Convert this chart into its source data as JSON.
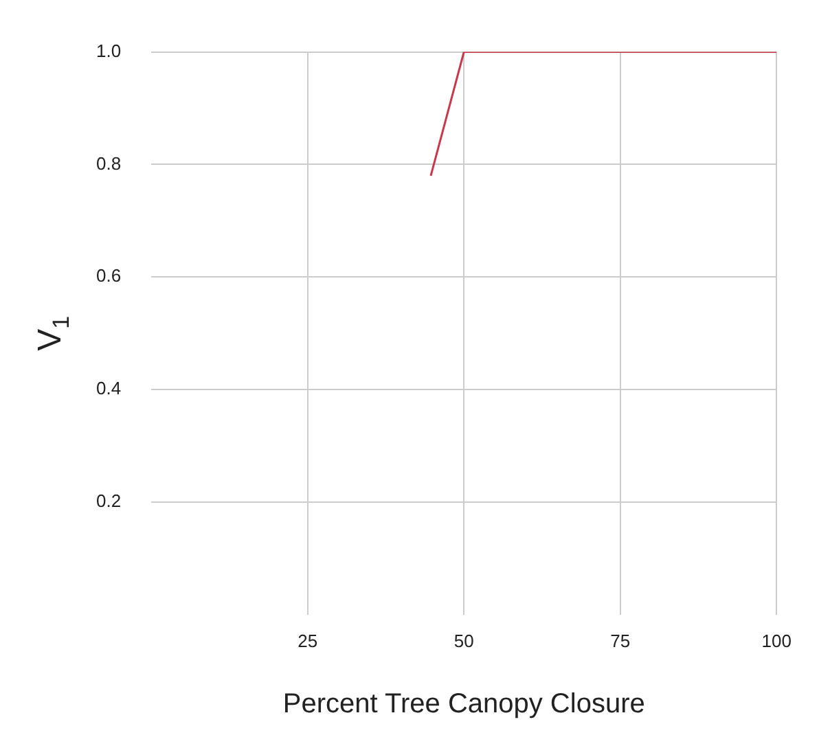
{
  "chart_data": {
    "type": "line",
    "xlabel": "Percent Tree Canopy Closure",
    "ylabel": "V$_{1}$",
    "x": [
      44.7,
      50,
      100
    ],
    "series": [
      {
        "color": "#c8374a",
        "values": [
          0.78,
          1.0,
          1.0
        ]
      }
    ],
    "xlim": [
      0,
      100
    ],
    "xticks": [
      25,
      50,
      75,
      100
    ],
    "ylim": [
      0,
      1
    ],
    "yticks": [
      0.2,
      0.4,
      0.6,
      0.8,
      {
        "value": 1,
        "label": "1.0"
      }
    ],
    "grid": true,
    "legend": false,
    "marker": "none",
    "line_style": "solid"
  }
}
